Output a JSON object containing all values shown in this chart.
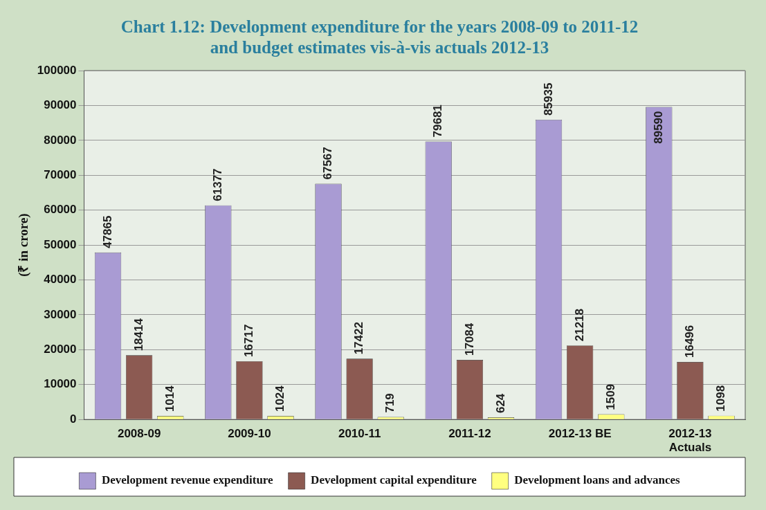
{
  "chart_data": {
    "type": "bar",
    "title": [
      "Chart 1.12: Development expenditure for the years 2008-09 to 2011-12",
      "and budget estimates vis-à-vis actuals 2012-13"
    ],
    "ylabel": "(₹ in crore)",
    "categories": [
      "2008-09",
      "2009-10",
      "2010-11",
      "2011-12",
      "2012-13 BE",
      "2012-13 Actuals"
    ],
    "series": [
      {
        "name": "Development revenue expenditure",
        "color": "#a99bd3",
        "values": [
          47865,
          61377,
          67567,
          79681,
          85935,
          89590
        ]
      },
      {
        "name": "Development capital expenditure",
        "color": "#8c5a52",
        "values": [
          18414,
          16717,
          17422,
          17084,
          21218,
          16496
        ]
      },
      {
        "name": "Development loans and advances",
        "color": "#ffff80",
        "values": [
          1014,
          1024,
          719,
          624,
          1509,
          1098
        ]
      }
    ],
    "ylim": [
      0,
      100000
    ],
    "yticks": [
      0,
      10000,
      20000,
      30000,
      40000,
      50000,
      60000,
      70000,
      80000,
      90000,
      100000
    ],
    "grid": "y",
    "legend": "bottom",
    "data_labels": true
  }
}
